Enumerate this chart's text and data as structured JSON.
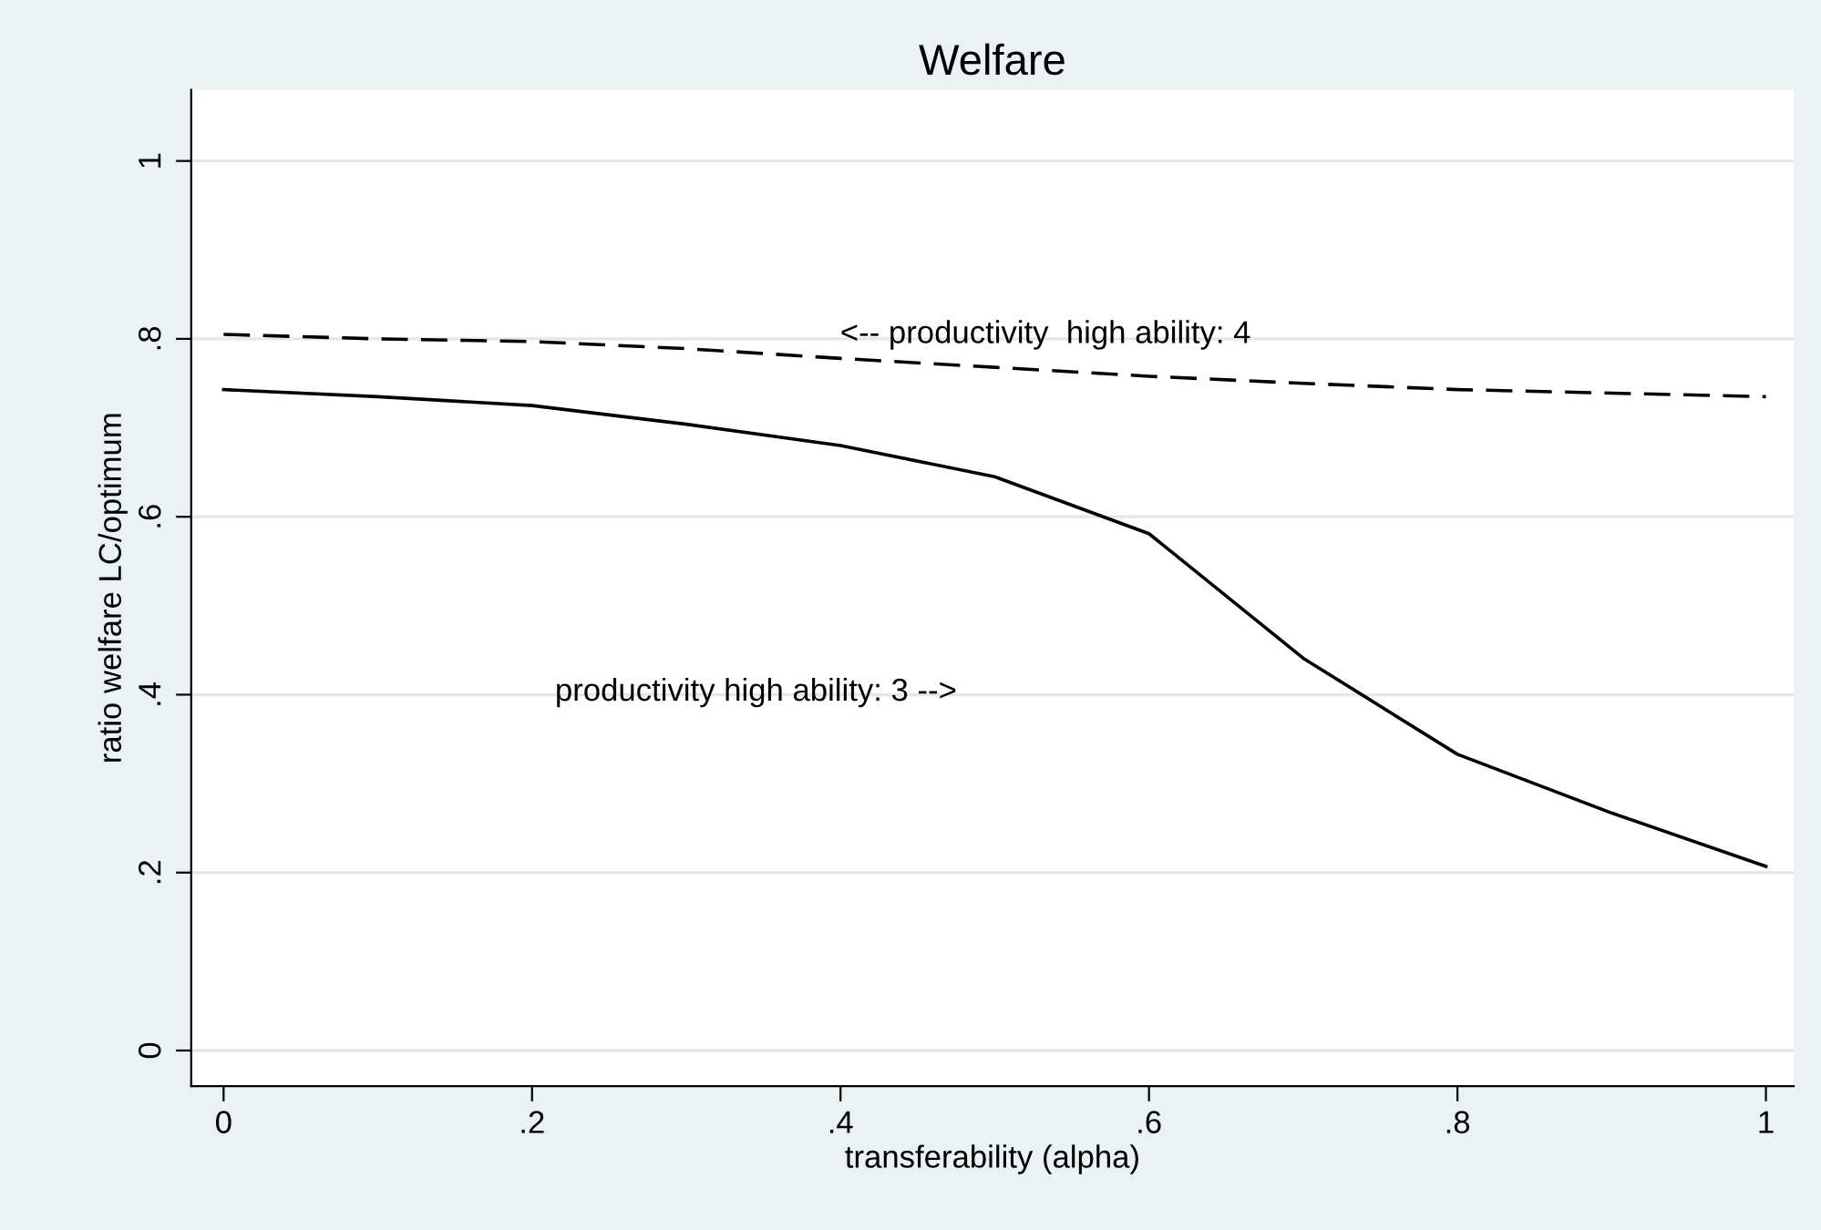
{
  "chart_data": {
    "type": "line",
    "title": "Welfare",
    "xlabel": "transferability (alpha)",
    "ylabel": "ratio welfare LC/optimum",
    "x": [
      0,
      0.1,
      0.2,
      0.3,
      0.4,
      0.5,
      0.6,
      0.7,
      0.8,
      0.9,
      1
    ],
    "series": [
      {
        "color": "#000000",
        "line_style": "solid",
        "values": [
          0.743,
          0.735,
          0.725,
          0.704,
          0.68,
          0.645,
          0.581,
          0.441,
          0.333,
          0.267,
          0.207
        ]
      },
      {
        "color": "#000000",
        "line_style": "dashed",
        "values": [
          0.805,
          0.8,
          0.797,
          0.789,
          0.778,
          0.768,
          0.758,
          0.75,
          0.743,
          0.739,
          0.735
        ]
      }
    ],
    "annotations": [
      "<-- productivity  high ability: 4",
      "productivity high ability: 3 -->"
    ],
    "xlim": [
      -0.021,
      1.018
    ],
    "ylim": [
      -0.04,
      1.08
    ],
    "xticks": [
      0,
      {
        "value": 0.2,
        "label": ".2"
      },
      {
        "value": 0.4,
        "label": ".4"
      },
      {
        "value": 0.6,
        "label": ".6"
      },
      {
        "value": 0.8,
        "label": ".8"
      },
      1
    ],
    "yticks": [
      0,
      {
        "value": 0.2,
        "label": ".2"
      },
      {
        "value": 0.4,
        "label": ".4"
      },
      {
        "value": 0.6,
        "label": ".6"
      },
      {
        "value": 0.8,
        "label": ".8"
      },
      1
    ],
    "grid": "y",
    "marker": "none"
  }
}
